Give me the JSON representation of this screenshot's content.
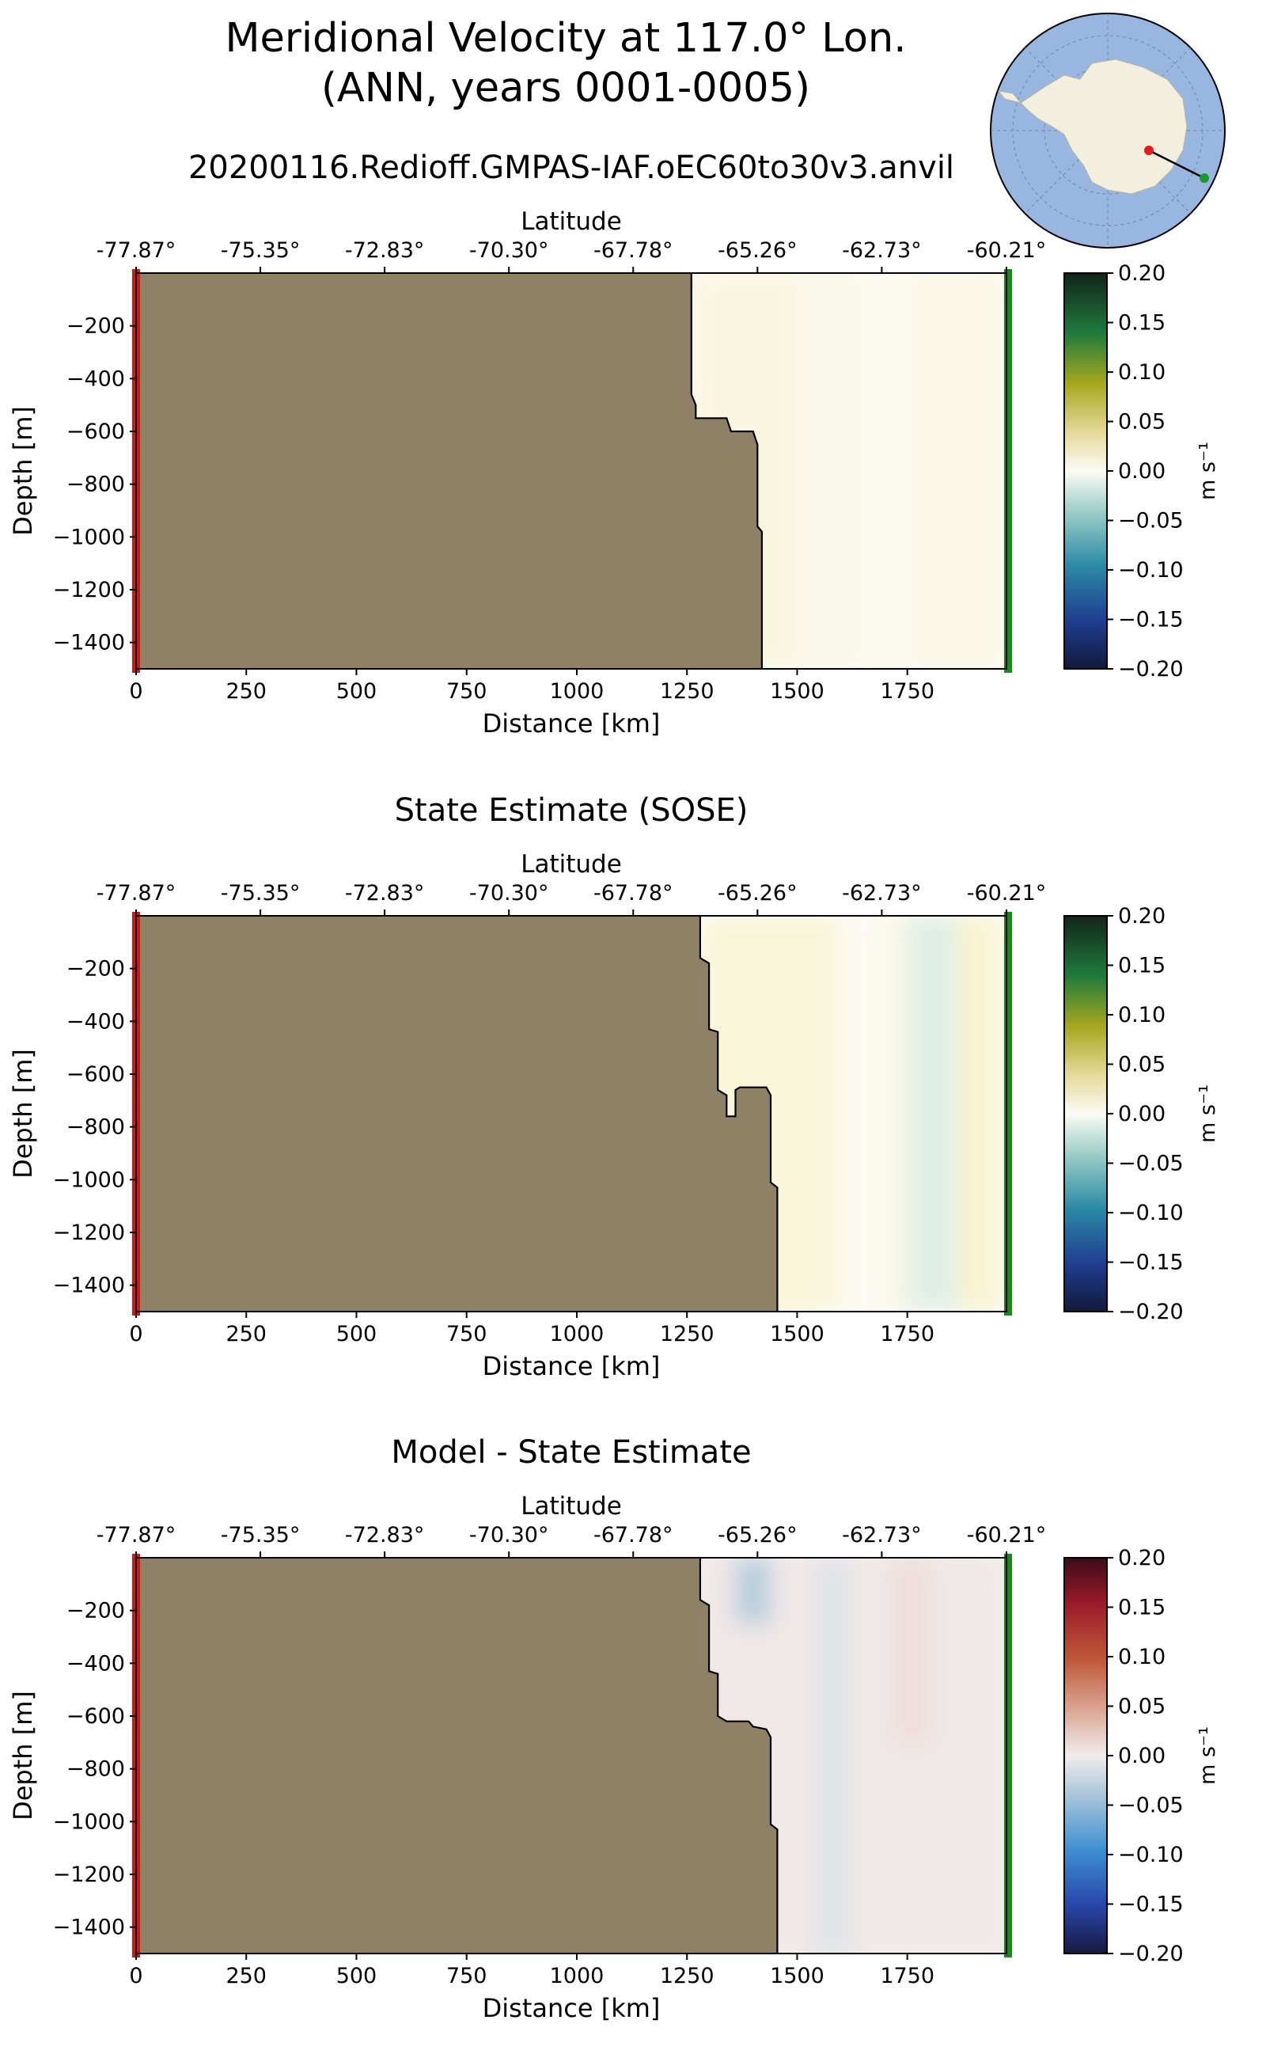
{
  "title_line1": "Meridional Velocity at 117.0° Lon.",
  "title_line2": "(ANN, years 0001-0005)",
  "colors": {
    "land": "#8f8166",
    "start_marker": "#d01717",
    "end_marker": "#178a17"
  },
  "chart_data": [
    {
      "type": "heatmap",
      "title": "20200116.Redioff.GMPAS-IAF.oEC60to30v3.anvil",
      "xlabel": "Distance [km]",
      "ylabel": "Depth [m]",
      "top_axis_label": "Latitude",
      "xlim": [
        0,
        1975
      ],
      "ylim": [
        -1500,
        0
      ],
      "xticks": [
        0,
        250,
        500,
        750,
        1000,
        1250,
        1500,
        1750
      ],
      "yticks": [
        -200,
        -400,
        -600,
        -800,
        -1000,
        -1200,
        -1400
      ],
      "lat_ticks": [
        "-77.87°",
        "-75.35°",
        "-72.83°",
        "-70.30°",
        "-67.78°",
        "-65.26°",
        "-62.73°",
        "-60.21°"
      ],
      "lat_tick_distances_km": [
        0,
        282,
        564,
        846,
        1128,
        1410,
        1692,
        1975
      ],
      "colorbar": {
        "label": "m s⁻¹",
        "min": -0.2,
        "max": 0.2,
        "ticks": [
          "0.20",
          "0.15",
          "0.10",
          "0.05",
          "0.00",
          "−0.05",
          "−0.10",
          "−0.15",
          "−0.20"
        ],
        "colormap": "delta"
      },
      "bathymetry_km_depth": [
        [
          1260,
          0
        ],
        [
          1260,
          -460
        ],
        [
          1270,
          -500
        ],
        [
          1270,
          -550
        ],
        [
          1340,
          -550
        ],
        [
          1350,
          -600
        ],
        [
          1400,
          -600
        ],
        [
          1410,
          -650
        ],
        [
          1410,
          -960
        ],
        [
          1420,
          -980
        ],
        [
          1420,
          -1500
        ]
      ],
      "velocity_columns": [
        {
          "x": [
            1262,
            1380
          ],
          "value": 0.035,
          "depth": [
            0,
            -400
          ]
        },
        {
          "x": [
            1262,
            1500
          ],
          "value": 0.015,
          "depth": [
            0,
            -1500
          ]
        },
        {
          "x": [
            1500,
            1650
          ],
          "value": 0.008,
          "depth": [
            0,
            -1500
          ]
        },
        {
          "x": [
            1650,
            1760
          ],
          "value": 0.002,
          "depth": [
            0,
            -1500
          ]
        },
        {
          "x": [
            1760,
            1960
          ],
          "value": 0.012,
          "depth": [
            0,
            -1500
          ]
        }
      ]
    },
    {
      "type": "heatmap",
      "title": "State Estimate (SOSE)",
      "xlabel": "Distance [km]",
      "ylabel": "Depth [m]",
      "top_axis_label": "Latitude",
      "xlim": [
        0,
        1975
      ],
      "ylim": [
        -1500,
        0
      ],
      "xticks": [
        0,
        250,
        500,
        750,
        1000,
        1250,
        1500,
        1750
      ],
      "yticks": [
        -200,
        -400,
        -600,
        -800,
        -1000,
        -1200,
        -1400
      ],
      "lat_ticks": [
        "-77.87°",
        "-75.35°",
        "-72.83°",
        "-70.30°",
        "-67.78°",
        "-65.26°",
        "-62.73°",
        "-60.21°"
      ],
      "lat_tick_distances_km": [
        0,
        282,
        564,
        846,
        1128,
        1410,
        1692,
        1975
      ],
      "colorbar": {
        "label": "m s⁻¹",
        "min": -0.2,
        "max": 0.2,
        "ticks": [
          "0.20",
          "0.15",
          "0.10",
          "0.05",
          "0.00",
          "−0.05",
          "−0.10",
          "−0.15",
          "−0.20"
        ],
        "colormap": "delta"
      },
      "bathymetry_km_depth": [
        [
          1280,
          0
        ],
        [
          1280,
          -160
        ],
        [
          1300,
          -180
        ],
        [
          1300,
          -430
        ],
        [
          1320,
          -440
        ],
        [
          1320,
          -660
        ],
        [
          1340,
          -680
        ],
        [
          1340,
          -760
        ],
        [
          1360,
          -760
        ],
        [
          1360,
          -660
        ],
        [
          1370,
          -650
        ],
        [
          1430,
          -650
        ],
        [
          1440,
          -680
        ],
        [
          1440,
          -1010
        ],
        [
          1455,
          -1030
        ],
        [
          1455,
          -1500
        ]
      ],
      "velocity_columns": [
        {
          "x": [
            1282,
            1450
          ],
          "value": 0.05,
          "depth": [
            0,
            -300
          ]
        },
        {
          "x": [
            1282,
            1600
          ],
          "value": 0.02,
          "depth": [
            0,
            -1500
          ]
        },
        {
          "x": [
            1600,
            1680
          ],
          "value": 0.0,
          "depth": [
            0,
            -1500
          ]
        },
        {
          "x": [
            1680,
            1750
          ],
          "value": 0.01,
          "depth": [
            0,
            -1500
          ]
        },
        {
          "x": [
            1750,
            1860
          ],
          "value": -0.015,
          "depth": [
            0,
            -1500
          ]
        },
        {
          "x": [
            1860,
            1960
          ],
          "value": 0.025,
          "depth": [
            0,
            -1500
          ]
        }
      ]
    },
    {
      "type": "heatmap",
      "title": "Model - State Estimate",
      "xlabel": "Distance [km]",
      "ylabel": "Depth [m]",
      "top_axis_label": "Latitude",
      "xlim": [
        0,
        1975
      ],
      "ylim": [
        -1500,
        0
      ],
      "xticks": [
        0,
        250,
        500,
        750,
        1000,
        1250,
        1500,
        1750
      ],
      "yticks": [
        -200,
        -400,
        -600,
        -800,
        -1000,
        -1200,
        -1400
      ],
      "lat_ticks": [
        "-77.87°",
        "-75.35°",
        "-72.83°",
        "-70.30°",
        "-67.78°",
        "-65.26°",
        "-62.73°",
        "-60.21°"
      ],
      "lat_tick_distances_km": [
        0,
        282,
        564,
        846,
        1128,
        1410,
        1692,
        1975
      ],
      "colorbar": {
        "label": "m s⁻¹",
        "min": -0.2,
        "max": 0.2,
        "ticks": [
          "0.20",
          "0.15",
          "0.10",
          "0.05",
          "0.00",
          "−0.05",
          "−0.10",
          "−0.15",
          "−0.20"
        ],
        "colormap": "balance"
      },
      "bathymetry_km_depth": [
        [
          1280,
          0
        ],
        [
          1280,
          -160
        ],
        [
          1300,
          -180
        ],
        [
          1300,
          -430
        ],
        [
          1320,
          -440
        ],
        [
          1320,
          -600
        ],
        [
          1340,
          -620
        ],
        [
          1390,
          -620
        ],
        [
          1400,
          -640
        ],
        [
          1430,
          -650
        ],
        [
          1440,
          -680
        ],
        [
          1440,
          -1010
        ],
        [
          1455,
          -1030
        ],
        [
          1455,
          -1500
        ]
      ],
      "velocity_columns": [
        {
          "x": [
            1282,
            1960
          ],
          "value": 0.003,
          "depth": [
            0,
            -1500
          ]
        },
        {
          "x": [
            1360,
            1440
          ],
          "value": -0.04,
          "depth": [
            0,
            -250
          ]
        },
        {
          "x": [
            1540,
            1620
          ],
          "value": -0.012,
          "depth": [
            0,
            -1500
          ]
        },
        {
          "x": [
            1720,
            1800
          ],
          "value": 0.012,
          "depth": [
            0,
            -700
          ]
        }
      ]
    }
  ]
}
